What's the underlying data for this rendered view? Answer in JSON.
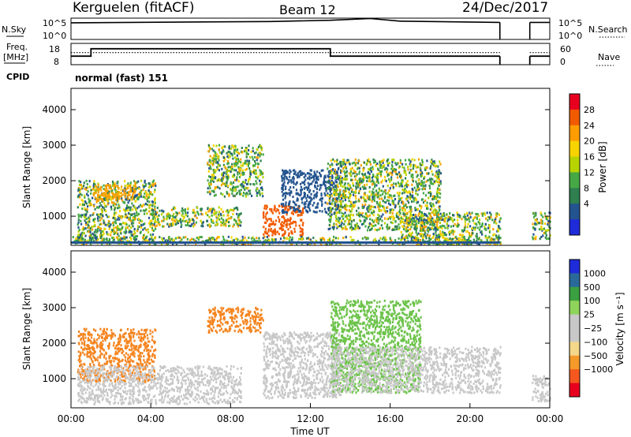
{
  "header": {
    "title": "Kerguelen (fitACF)",
    "beam": "Beam 12",
    "date": "24/Dec/2017"
  },
  "panels": {
    "sky_label": "N.Sky",
    "sky_ticks": [
      "10^5",
      "10^0"
    ],
    "search_label": "N.Search",
    "search_ticks": [
      "10^5",
      "10^0"
    ],
    "freq_label_line1": "Freq.",
    "freq_label_line2": "[MHz]",
    "freq_ticks": [
      "18",
      "8"
    ],
    "nave_label": "Nave",
    "nave_ticks": [
      "60",
      "0"
    ],
    "cpid_label": "CPID",
    "cpid_value": "normal (fast) 151"
  },
  "chart_data": [
    {
      "type": "line",
      "name": "sky-noise-panel",
      "ylabel": "N.Sky",
      "right_label": "N.Search",
      "series": [
        {
          "name": "N.Sky",
          "style": "solid",
          "segments": [
            {
              "x": [
                0.0,
                10.0,
                13.0,
                15.0,
                16.5,
                21.5
              ],
              "y": [
                0.78,
                0.84,
                0.9,
                0.98,
                0.86,
                0.8
              ]
            },
            {
              "x": [
                23.0,
                24.0
              ],
              "y": [
                0.8,
                0.8
              ]
            }
          ]
        }
      ],
      "drop_to_zero_at": [
        21.5,
        23.0
      ]
    },
    {
      "type": "line",
      "name": "frequency-panel",
      "ylabel": "Freq. [MHz]",
      "left_ticks": [
        8,
        18
      ],
      "right_ticks": [
        0,
        60
      ],
      "right_label": "Nave",
      "series": [
        {
          "name": "Freq",
          "style": "solid",
          "segments": [
            {
              "x": [
                0.0,
                1.0,
                1.0,
                13.0,
                13.0,
                21.5
              ],
              "y": [
                12,
                12,
                15.5,
                15.5,
                12,
                12
              ]
            },
            {
              "x": [
                23.0,
                24.0
              ],
              "y": [
                12,
                12
              ]
            }
          ]
        },
        {
          "name": "Nave",
          "style": "dotted",
          "segments": [
            {
              "x": [
                0.0,
                21.5
              ],
              "y": [
                34,
                34
              ]
            },
            {
              "x": [
                23.0,
                24.0
              ],
              "y": [
                34,
                34
              ]
            }
          ]
        }
      ]
    },
    {
      "type": "heatmap",
      "name": "power-panel",
      "ylabel": "Slant Range [km]",
      "y_ticks": [
        1000,
        2000,
        3000,
        4000
      ],
      "ylim": [
        180,
        4600
      ],
      "colorbar": {
        "label": "Power [dB]",
        "ticks": [
          "28",
          "24",
          "20",
          "16",
          "12",
          "8",
          "4"
        ],
        "colors": [
          "#e8001f",
          "#f25a00",
          "#ff9d00",
          "#f7d400",
          "#b8d400",
          "#46a845",
          "#2f7f4f",
          "#23548f",
          "#1f2bd8"
        ]
      },
      "regions": [
        {
          "t": [
            0.3,
            4.2
          ],
          "r": [
            280,
            2000
          ],
          "color": "mix"
        },
        {
          "t": [
            1.0,
            3.2
          ],
          "r": [
            1450,
            1900
          ],
          "color": "#f6a000"
        },
        {
          "t": [
            4.0,
            8.5
          ],
          "r": [
            700,
            1250
          ],
          "color": "mix"
        },
        {
          "t": [
            6.8,
            9.6
          ],
          "r": [
            1550,
            3000
          ],
          "color": "mix"
        },
        {
          "t": [
            9.6,
            11.6
          ],
          "r": [
            450,
            1300
          ],
          "color": "#f25a00"
        },
        {
          "t": [
            10.5,
            13.5
          ],
          "r": [
            1100,
            2300
          ],
          "color": "#23548f"
        },
        {
          "t": [
            12.8,
            18.5
          ],
          "r": [
            600,
            2600
          ],
          "color": "mix"
        },
        {
          "t": [
            16.5,
            21.5
          ],
          "r": [
            200,
            1100
          ],
          "color": "mix"
        },
        {
          "t": [
            23.1,
            24.0
          ],
          "r": [
            350,
            1100
          ],
          "color": "mix"
        },
        {
          "t": [
            0.0,
            21.5
          ],
          "r": [
            200,
            420
          ],
          "color": "mix"
        }
      ]
    },
    {
      "type": "heatmap",
      "name": "velocity-panel",
      "ylabel": "Slant Range [km]",
      "y_ticks": [
        1000,
        2000,
        3000,
        4000
      ],
      "ylim": [
        180,
        4600
      ],
      "x_ticks": [
        "00:00",
        "04:00",
        "08:00",
        "12:00",
        "16:00",
        "20:00",
        "00:00"
      ],
      "xlabel": "Time UT",
      "colorbar": {
        "label": "Velocity [m s⁻¹]",
        "ticks": [
          "1000",
          "500",
          "100",
          "25",
          "−25",
          "−100",
          "−500",
          "−1000"
        ],
        "colors": [
          "#1f2bd8",
          "#2a6a9a",
          "#3aa040",
          "#8fd45a",
          "#c8c8c8",
          "#c8c8c8",
          "#f5d78a",
          "#f59a2a",
          "#f5581e",
          "#e8001f"
        ]
      },
      "regions": [
        {
          "t": [
            0.3,
            4.2
          ],
          "r": [
            900,
            2400
          ],
          "color": "#f5841e"
        },
        {
          "t": [
            0.3,
            8.5
          ],
          "r": [
            280,
            1350
          ],
          "color": "#c8c8c8"
        },
        {
          "t": [
            6.8,
            9.6
          ],
          "r": [
            2300,
            3000
          ],
          "color": "#f5841e"
        },
        {
          "t": [
            9.6,
            13.5
          ],
          "r": [
            450,
            2300
          ],
          "color": "#c8c8c8"
        },
        {
          "t": [
            13.0,
            17.5
          ],
          "r": [
            600,
            3200
          ],
          "color": "#6cc34a"
        },
        {
          "t": [
            13.0,
            21.5
          ],
          "r": [
            600,
            1900
          ],
          "color": "#c8c8c8"
        },
        {
          "t": [
            23.1,
            24.0
          ],
          "r": [
            350,
            1100
          ],
          "color": "#c8c8c8"
        }
      ]
    }
  ]
}
